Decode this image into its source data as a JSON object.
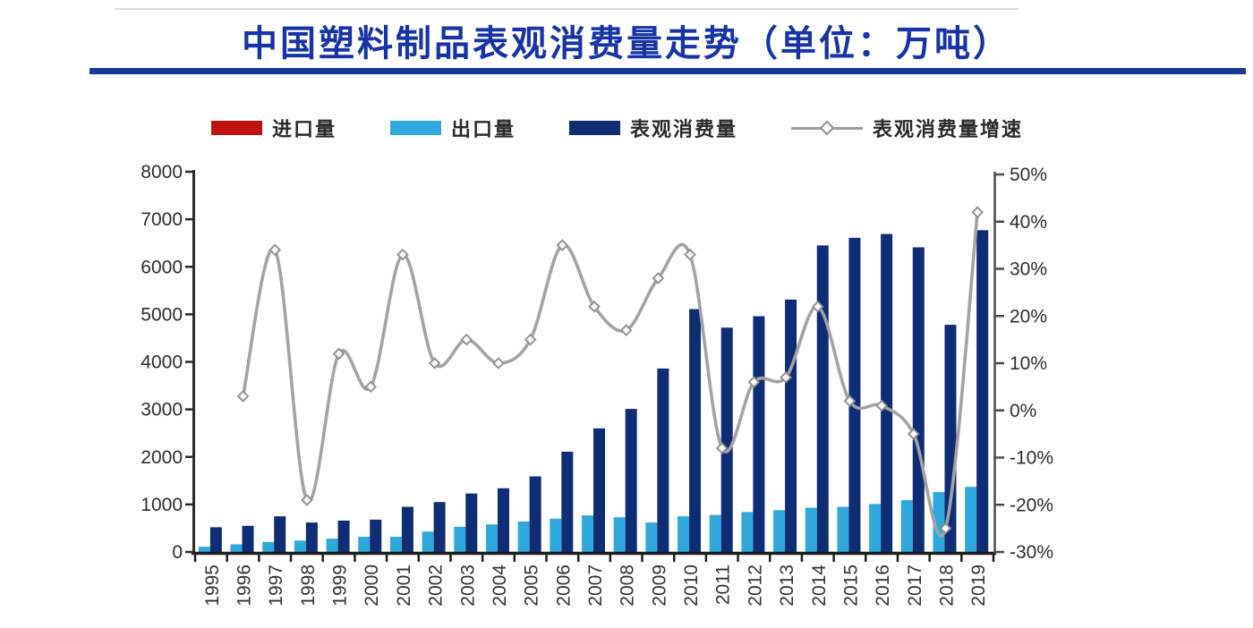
{
  "title": "中国塑料制品表观消费量走势（单位：万吨）",
  "legend": [
    {
      "label": "进口量",
      "color": "#c11212",
      "type": "bar"
    },
    {
      "label": "出口量",
      "color": "#2fa8dd",
      "type": "bar"
    },
    {
      "label": "表观消费量",
      "color": "#102c74",
      "type": "bar"
    },
    {
      "label": "表观消费量增速",
      "color": "#a3a3a3",
      "type": "line"
    }
  ],
  "chart_data": {
    "type": "bar+line combo",
    "title": "中国塑料制品表观消费量走势（单位：万吨）",
    "categories": [
      "1995",
      "1996",
      "1997",
      "1998",
      "1999",
      "2000",
      "2001",
      "2002",
      "2003",
      "2004",
      "2005",
      "2006",
      "2007",
      "2008",
      "2009",
      "2010",
      "2011",
      "2012",
      "2013",
      "2014",
      "2015",
      "2016",
      "2017",
      "2018",
      "2019"
    ],
    "series": [
      {
        "name": "进口量",
        "type": "bar",
        "axis": "left",
        "color": "#c11212",
        "values": [
          0,
          0,
          0,
          0,
          0,
          0,
          0,
          0,
          0,
          0,
          0,
          0,
          0,
          0,
          0,
          0,
          0,
          0,
          0,
          0,
          0,
          0,
          0,
          0,
          0
        ]
      },
      {
        "name": "出口量",
        "type": "bar",
        "axis": "left",
        "color": "#2fa8dd",
        "values": [
          110,
          160,
          210,
          240,
          280,
          320,
          320,
          430,
          530,
          580,
          640,
          700,
          770,
          730,
          620,
          750,
          780,
          840,
          880,
          930,
          950,
          1010,
          1090,
          1260,
          1370
        ]
      },
      {
        "name": "表观消费量",
        "type": "bar",
        "axis": "left",
        "color": "#102c74",
        "values": [
          520,
          550,
          750,
          620,
          660,
          680,
          950,
          1050,
          1230,
          1340,
          1590,
          2110,
          2600,
          3010,
          3860,
          5110,
          4720,
          4960,
          5310,
          6450,
          6610,
          6690,
          6410,
          4780,
          6770
        ]
      },
      {
        "name": "表观消费量增速",
        "type": "line",
        "axis": "right",
        "color": "#a3a3a3",
        "values": [
          null,
          3,
          34,
          -19,
          12,
          5,
          33,
          10,
          15,
          10,
          15,
          35,
          22,
          17,
          28,
          33,
          -8,
          6,
          7,
          22,
          2,
          1,
          -5,
          -25,
          42
        ]
      }
    ],
    "left_axis": {
      "min": 0,
      "max": 8000,
      "ticks": [
        8000,
        7000,
        6000,
        5000,
        4000,
        3000,
        2000,
        1000,
        0
      ]
    },
    "right_axis": {
      "min": -30,
      "max": 50,
      "ticks": [
        {
          "value": 50,
          "label": "50%"
        },
        {
          "value": 40,
          "label": "40%"
        },
        {
          "value": 30,
          "label": "30%"
        },
        {
          "value": 20,
          "label": "20%"
        },
        {
          "value": 10,
          "label": "10%"
        },
        {
          "value": 0,
          "label": "0%"
        },
        {
          "value": -10,
          "label": "-10%"
        },
        {
          "value": -20,
          "label": "-20%"
        },
        {
          "value": -30,
          "label": "-30%"
        }
      ]
    },
    "grid": "off",
    "legend_position": "top",
    "x_label_rotation": -90
  }
}
